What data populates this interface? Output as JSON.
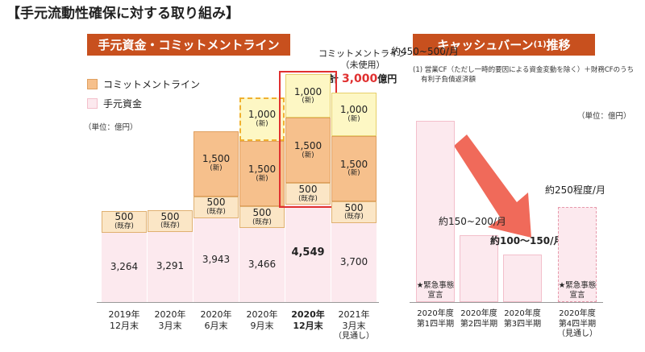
{
  "title": "【手元流動性確保に対する取り組み】",
  "left_panel": {
    "banner": "手元資金・コミットメントライン",
    "legend": {
      "commit": "コミットメントライン",
      "cash": "手元資金"
    },
    "unit": "（単位：億円）",
    "callout": {
      "line1": "コミットメントライン",
      "line2": "（未使用）",
      "prefix": "計",
      "amount": "3,000",
      "suffix": "億円"
    }
  },
  "right_panel": {
    "banner": "キャッシュバーン",
    "banner_sup": "(1)",
    "banner_suffix": "推移",
    "note1": "(1) 営業CF（ただし一時的要因による資金変動を除く）＋財務CFのうち",
    "note2": "有利子負債返済額",
    "unit": "（単位：億円）"
  },
  "colors": {
    "banner": "#c8501e",
    "cash": "#fce9ee",
    "commit_500": "#fbe6c6",
    "commit_1500": "#f6c08c",
    "commit_1000": "#fdf7c4",
    "highlight": "#e03030",
    "arrow": "#f06a5a"
  },
  "chart_data": [
    {
      "type": "bar",
      "title": "手元資金・コミットメントライン",
      "unit": "億円",
      "categories": [
        {
          "line1": "2019年",
          "line2": "12月末",
          "line3": ""
        },
        {
          "line1": "2020年",
          "line2": "3月末",
          "line3": ""
        },
        {
          "line1": "2020年",
          "line2": "6月末",
          "line3": ""
        },
        {
          "line1": "2020年",
          "line2": "9月末",
          "line3": ""
        },
        {
          "line1": "2020年",
          "line2": "12月末",
          "line3": ""
        },
        {
          "line1": "2021年",
          "line2": "3月末",
          "line3": "（見通し）"
        }
      ],
      "series": [
        {
          "name": "手元資金",
          "values": [
            3264,
            3291,
            3943,
            3466,
            4549,
            3700
          ],
          "labels": [
            "3,264",
            "3,291",
            "3,943",
            "3,466",
            "4,549",
            "3,700"
          ]
        },
        {
          "name": "コミットメントライン（既存）",
          "values": [
            500,
            500,
            500,
            500,
            500,
            500
          ],
          "labels": [
            "500",
            "500",
            "500",
            "500",
            "500",
            "500"
          ],
          "tags": [
            "(既存)",
            "(既存)",
            "(既存)",
            "(既存)",
            "(既存)",
            "(既存)"
          ]
        },
        {
          "name": "コミットメントライン（新）1,500",
          "values": [
            0,
            0,
            1500,
            1500,
            1500,
            1500
          ],
          "labels": [
            "",
            "",
            "1,500",
            "1,500",
            "1,500",
            "1,500"
          ],
          "tags": [
            "",
            "",
            "(新)",
            "(新)",
            "(新)",
            "(新)"
          ]
        },
        {
          "name": "コミットメントライン（新）1,000",
          "values": [
            0,
            0,
            0,
            1000,
            1000,
            1000
          ],
          "labels": [
            "",
            "",
            "",
            "1,000",
            "1,000",
            "1,000"
          ],
          "tags": [
            "",
            "",
            "",
            "(新)",
            "(新)",
            "(新)"
          ]
        }
      ]
    },
    {
      "type": "bar",
      "title": "キャッシュバーン推移",
      "unit": "億円",
      "categories": [
        {
          "line1": "2020年度",
          "line2": "第1四半期",
          "line3": ""
        },
        {
          "line1": "2020年度",
          "line2": "第2四半期",
          "line3": ""
        },
        {
          "line1": "2020年度",
          "line2": "第3四半期",
          "line3": ""
        },
        {
          "line1": "2020年度",
          "line2": "第4四半期",
          "line3": "（見通し）"
        }
      ],
      "values": [
        475,
        175,
        125,
        250
      ],
      "labels": [
        "約450~500/月",
        "約150~200/月",
        "約100～150/月",
        "約250程度/月"
      ],
      "annotations": [
        {
          "line1": "★緊急事態",
          "line2": "宣言"
        },
        {
          "line1": "★緊急事態",
          "line2": "宣言"
        }
      ]
    }
  ]
}
